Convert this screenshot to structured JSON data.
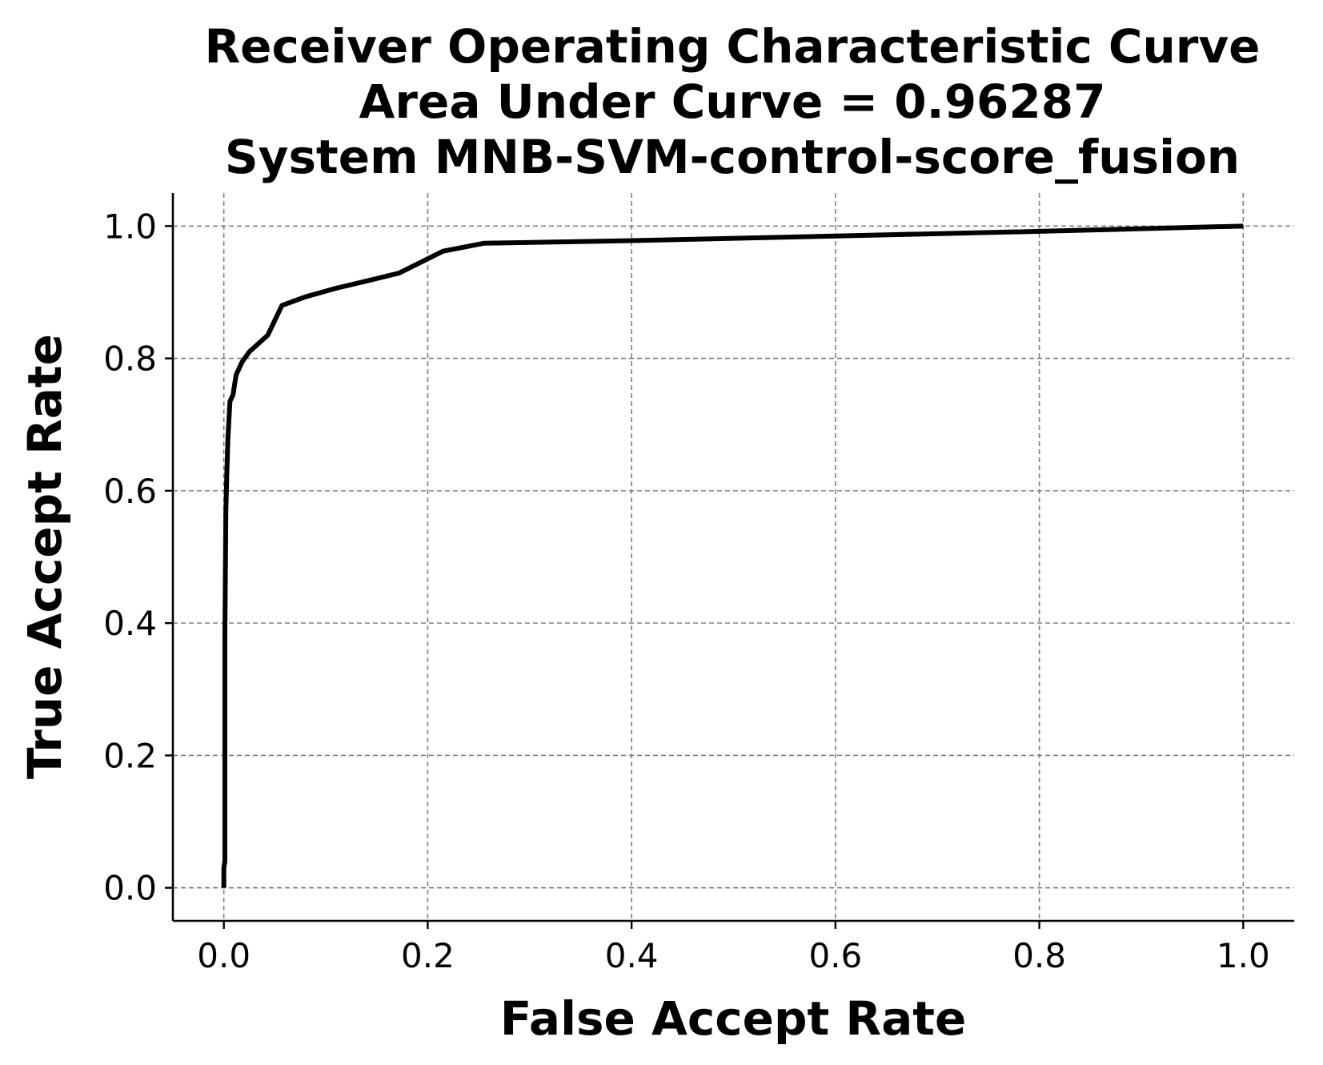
{
  "chart_data": {
    "type": "line",
    "title": [
      "Receiver Operating Characteristic Curve",
      "Area Under Curve = 0.96287",
      "System MNB-SVM-control-score_fusion"
    ],
    "xlabel": "False Accept Rate",
    "ylabel": "True Accept Rate",
    "xlim": [
      -0.05,
      1.05
    ],
    "ylim": [
      -0.05,
      1.05
    ],
    "xticks": [
      0.0,
      0.2,
      0.4,
      0.6,
      0.8,
      1.0
    ],
    "xtick_labels": [
      "0.0",
      "0.2",
      "0.4",
      "0.6",
      "0.8",
      "1.0"
    ],
    "yticks": [
      0.0,
      0.2,
      0.4,
      0.6,
      0.8,
      1.0
    ],
    "ytick_labels": [
      "0.0",
      "0.2",
      "0.4",
      "0.6",
      "0.8",
      "1.0"
    ],
    "grid": true,
    "line_color": "#000000",
    "series": [
      {
        "x": [
          0.0,
          0.0,
          0.001,
          0.001,
          0.002,
          0.003,
          0.004,
          0.006,
          0.009,
          0.012,
          0.018,
          0.025,
          0.043,
          0.057,
          0.08,
          0.11,
          0.14,
          0.172,
          0.215,
          0.255,
          0.4,
          0.6,
          0.8,
          1.0
        ],
        "y": [
          0.0,
          0.03,
          0.04,
          0.38,
          0.57,
          0.63,
          0.68,
          0.735,
          0.745,
          0.775,
          0.795,
          0.81,
          0.835,
          0.88,
          0.893,
          0.906,
          0.917,
          0.929,
          0.962,
          0.974,
          0.978,
          0.985,
          0.992,
          1.0
        ]
      }
    ]
  }
}
